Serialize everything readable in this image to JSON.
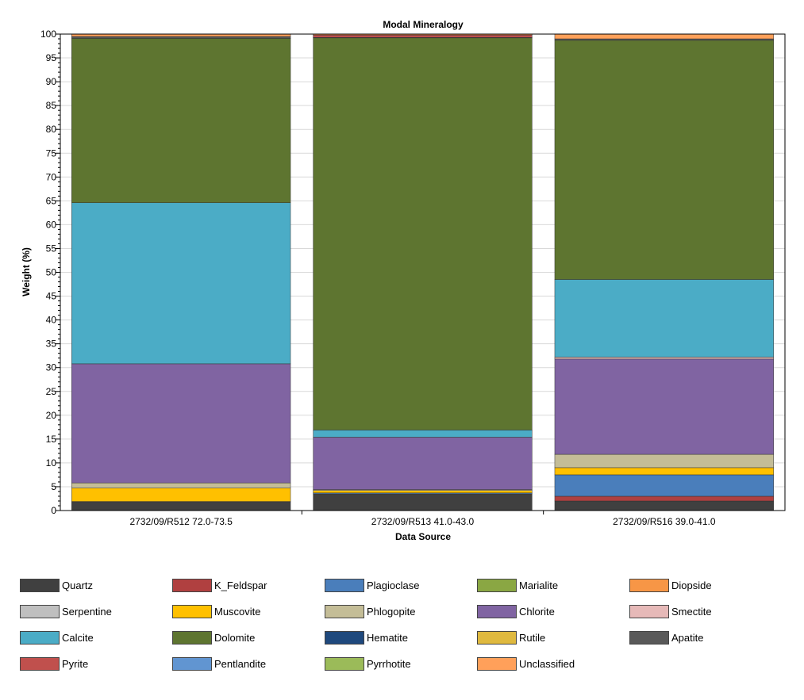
{
  "chart_data": {
    "type": "bar",
    "stacked": true,
    "title": "Modal Mineralogy",
    "xlabel": "Data Source",
    "ylabel": "Weight (%)",
    "ylim": [
      0,
      100
    ],
    "ytick_step": 5,
    "grid": true,
    "categories": [
      "2732/09/R512 72.0-73.5",
      "2732/09/R513 41.0-43.0",
      "2732/09/R516 39.0-41.0"
    ],
    "series": [
      {
        "name": "Quartz",
        "color": "#404040",
        "values": [
          1.8,
          3.5,
          2.0
        ]
      },
      {
        "name": "K_Feldspar",
        "color": "#b04040",
        "values": [
          0.0,
          0.0,
          1.0
        ]
      },
      {
        "name": "Plagioclase",
        "color": "#4a7ebb",
        "values": [
          0.0,
          0.2,
          4.5
        ]
      },
      {
        "name": "Marialite",
        "color": "#8aa743",
        "values": [
          0.0,
          0.0,
          0.0
        ]
      },
      {
        "name": "Diopside",
        "color": "#f79646",
        "values": [
          0.0,
          0.0,
          0.0
        ]
      },
      {
        "name": "Serpentine",
        "color": "#bfbfbf",
        "values": [
          0.1,
          0.0,
          0.0
        ]
      },
      {
        "name": "Muscovite",
        "color": "#ffc000",
        "values": [
          2.8,
          0.5,
          1.5
        ]
      },
      {
        "name": "Phlogopite",
        "color": "#c4bd97",
        "values": [
          1.1,
          0.2,
          2.8
        ]
      },
      {
        "name": "Chlorite",
        "color": "#8064a2",
        "values": [
          25.0,
          11.0,
          20.0
        ]
      },
      {
        "name": "Smectite",
        "color": "#e6b9b8",
        "values": [
          0.0,
          0.0,
          0.4
        ]
      },
      {
        "name": "Calcite",
        "color": "#4bacc6",
        "values": [
          33.8,
          1.5,
          16.3
        ]
      },
      {
        "name": "Dolomite",
        "color": "#5e7530",
        "values": [
          34.5,
          82.3,
          50.2
        ]
      },
      {
        "name": "Hematite",
        "color": "#1f497d",
        "values": [
          0.0,
          0.0,
          0.0
        ]
      },
      {
        "name": "Rutile",
        "color": "#dfb93f",
        "values": [
          0.0,
          0.0,
          0.0
        ]
      },
      {
        "name": "Apatite",
        "color": "#595959",
        "values": [
          0.4,
          0.1,
          0.3
        ]
      },
      {
        "name": "Pyrite",
        "color": "#c0504d",
        "values": [
          0.0,
          0.5,
          0.0
        ]
      },
      {
        "name": "Pentlandite",
        "color": "#6195d1",
        "values": [
          0.0,
          0.0,
          0.0
        ]
      },
      {
        "name": "Pyrrhotite",
        "color": "#9bbb59",
        "values": [
          0.0,
          0.0,
          0.0
        ]
      },
      {
        "name": "Unclassified",
        "color": "#ffa05a",
        "values": [
          0.5,
          0.2,
          1.0
        ]
      }
    ],
    "legend_position": "bottom"
  }
}
